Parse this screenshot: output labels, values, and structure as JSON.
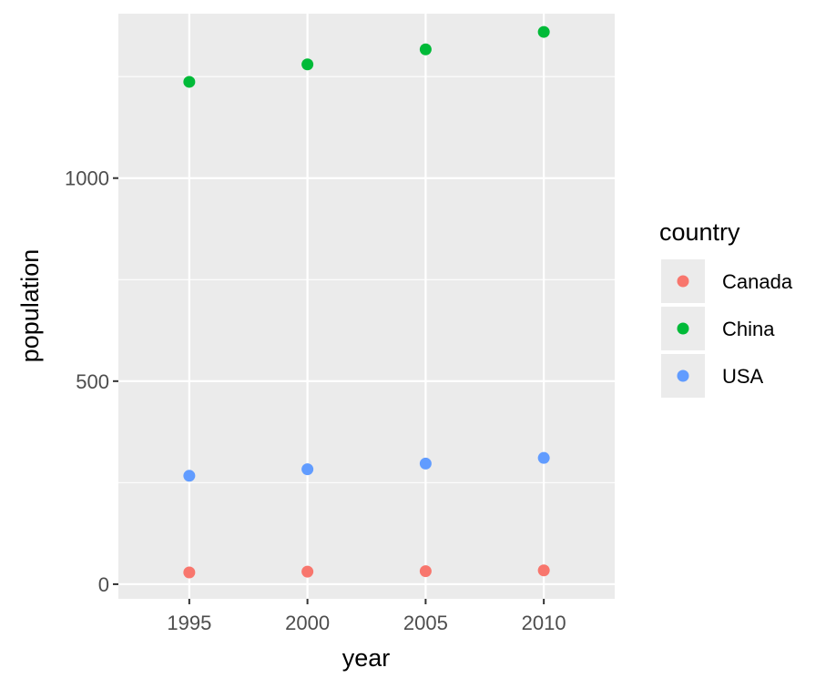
{
  "chart_data": {
    "type": "scatter",
    "title": "",
    "xlabel": "year",
    "ylabel": "population",
    "x": [
      1995,
      2000,
      2005,
      2010
    ],
    "xlim": [
      1992,
      2013
    ],
    "ylim": [
      -36,
      1405
    ],
    "x_ticks": [
      "1995",
      "2000",
      "2005",
      "2010"
    ],
    "y_ticks": [
      "0",
      "500",
      "1000"
    ],
    "y_tick_values": [
      0,
      500,
      1000
    ],
    "y_minor_gridlines": [
      250,
      750,
      1250
    ],
    "grid": true,
    "legend": {
      "title": "country",
      "position": "right"
    },
    "series": [
      {
        "name": "Canada",
        "color": "#F8766D",
        "values": [
          29,
          31,
          32,
          34
        ]
      },
      {
        "name": "China",
        "color": "#00BA38",
        "values": [
          1237,
          1280,
          1317,
          1360
        ]
      },
      {
        "name": "USA",
        "color": "#619CFF",
        "values": [
          267,
          283,
          297,
          311
        ]
      }
    ]
  }
}
